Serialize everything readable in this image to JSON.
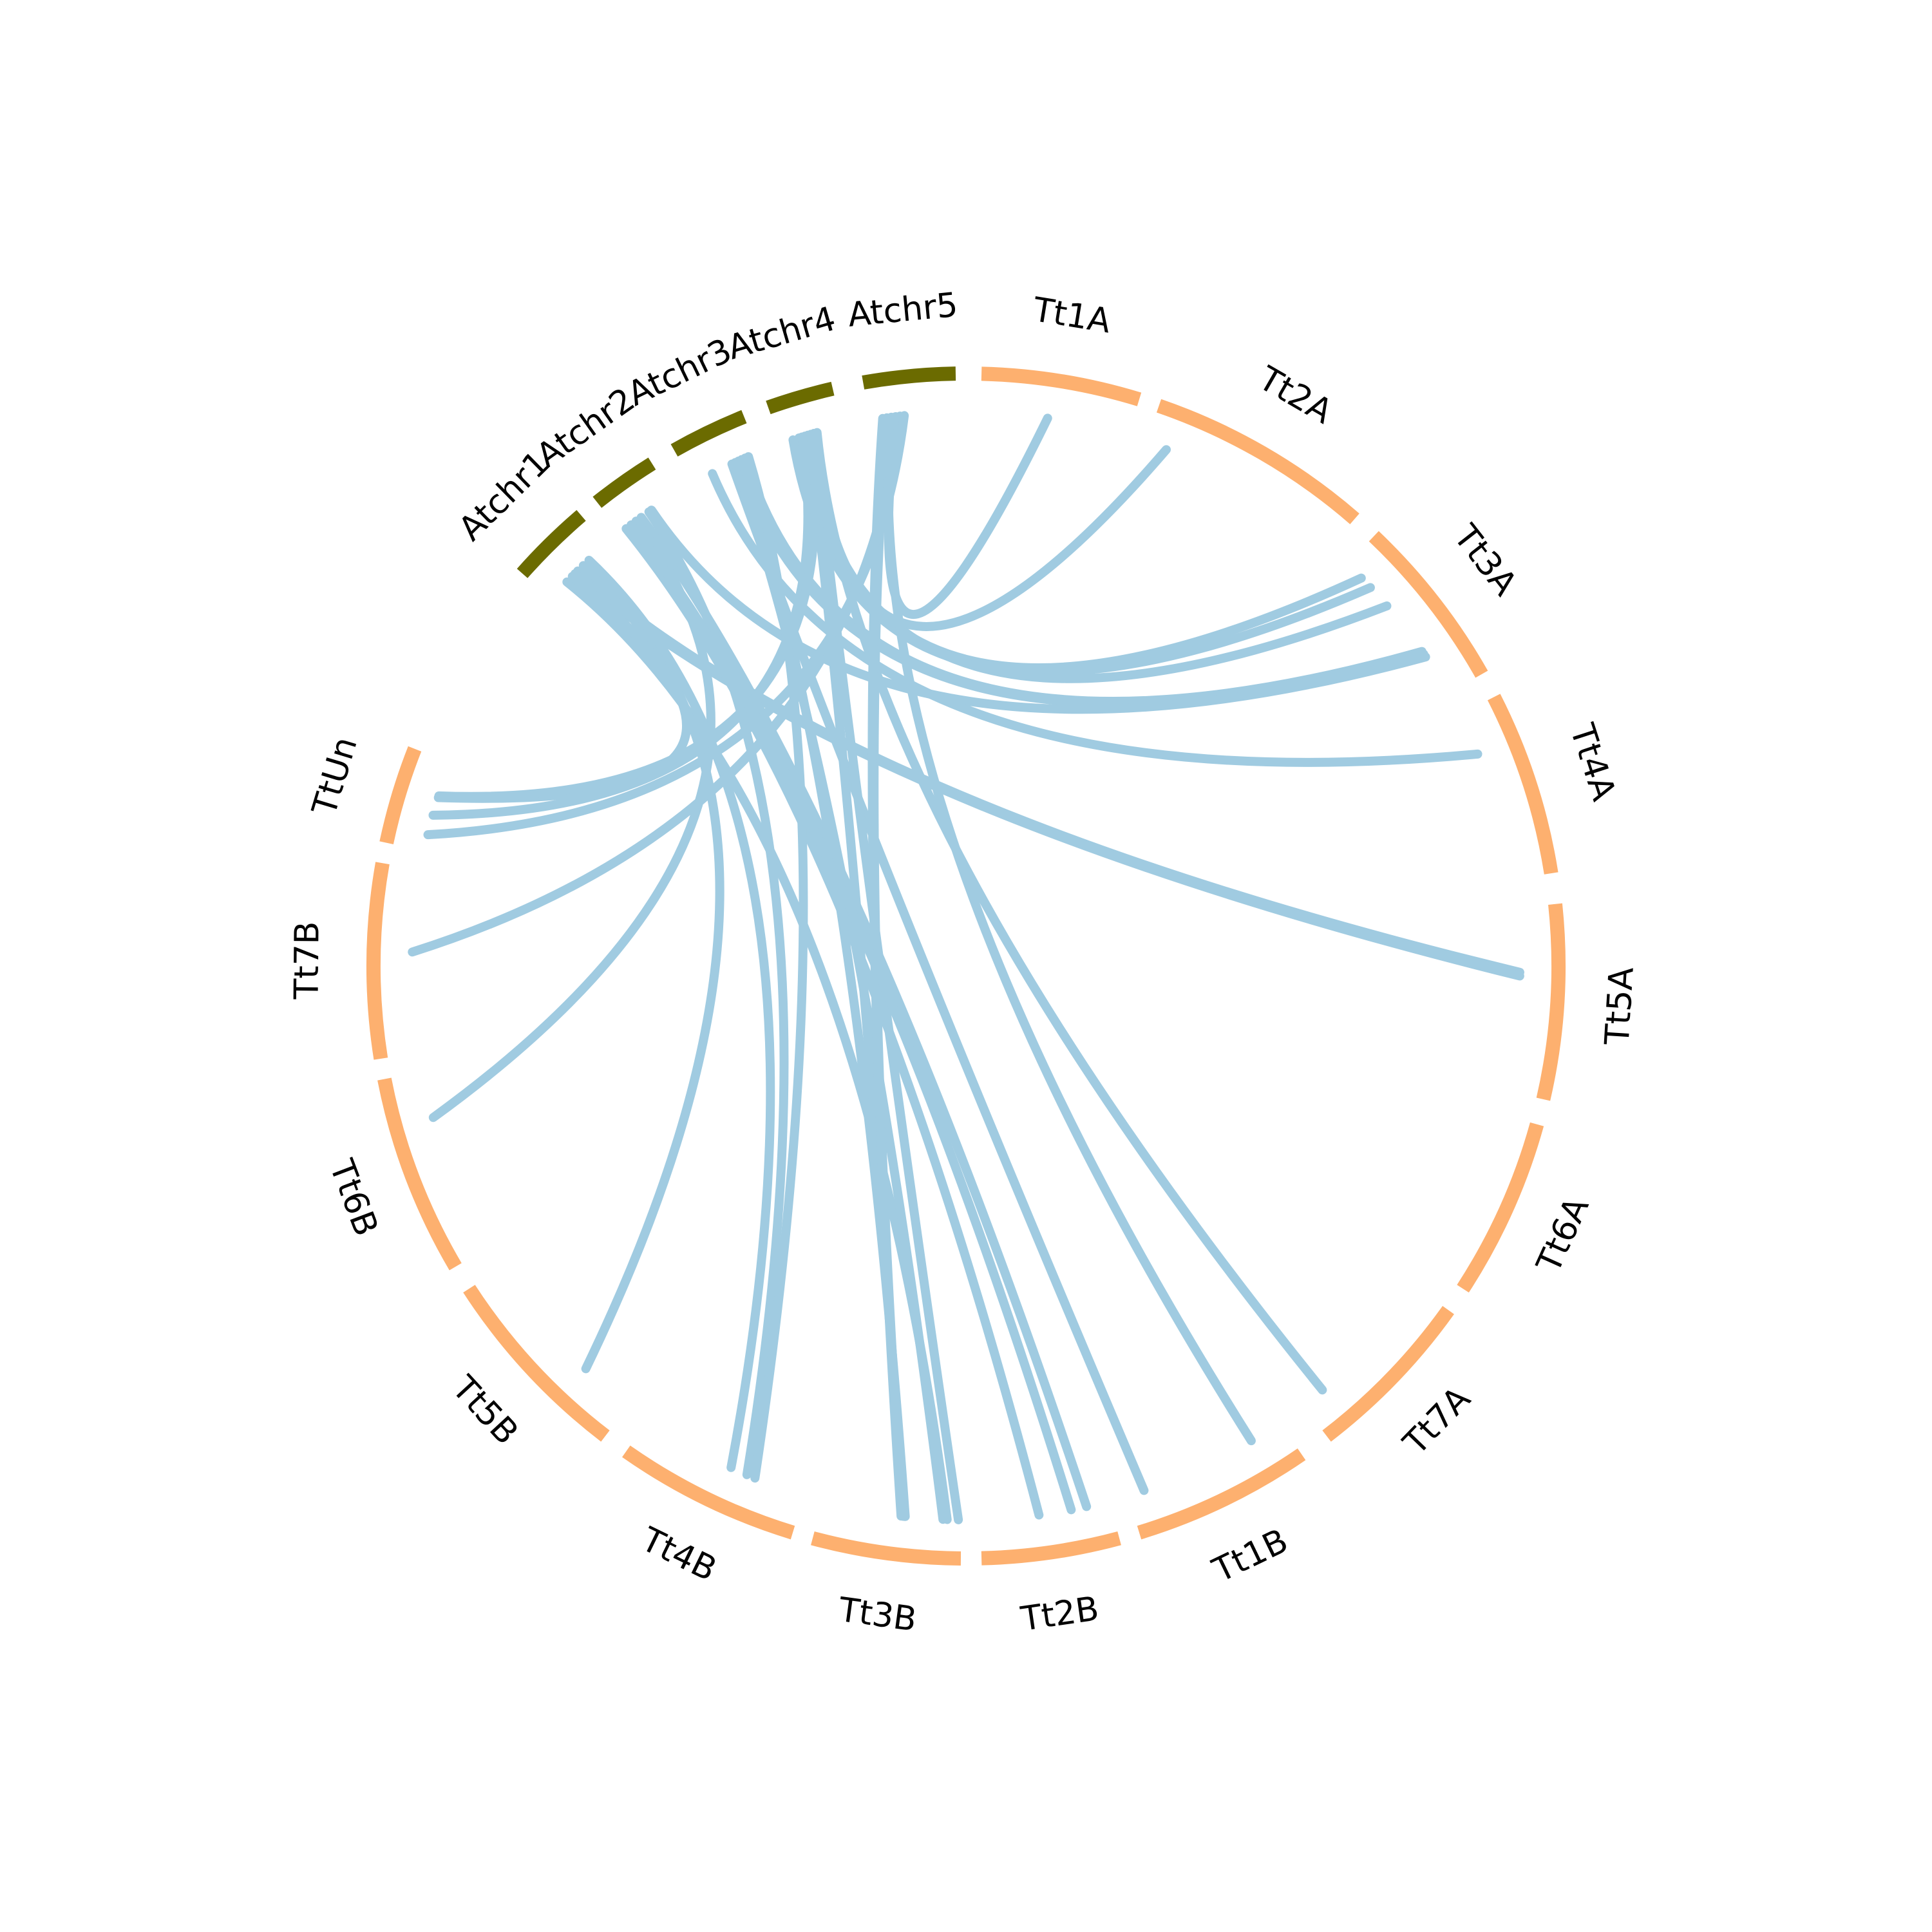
{
  "chart_data": {
    "type": "chord",
    "colors": {
      "ath": "#6b6b00",
      "tt": "#fdb06f",
      "link": "#a0cbe1"
    },
    "chromosomes": [
      {
        "name": "Atchr1",
        "group": "ath"
      },
      {
        "name": "Atchr2",
        "group": "ath"
      },
      {
        "name": "Atchr3",
        "group": "ath"
      },
      {
        "name": "Atchr4",
        "group": "ath"
      },
      {
        "name": "Atchr5",
        "group": "ath"
      },
      {
        "name": "Tt1A",
        "group": "tt"
      },
      {
        "name": "Tt2A",
        "group": "tt"
      },
      {
        "name": "Tt3A",
        "group": "tt"
      },
      {
        "name": "Tt4A",
        "group": "tt"
      },
      {
        "name": "Tt5A",
        "group": "tt"
      },
      {
        "name": "Tt6A",
        "group": "tt"
      },
      {
        "name": "Tt7A",
        "group": "tt"
      },
      {
        "name": "Tt1B",
        "group": "tt"
      },
      {
        "name": "Tt2B",
        "group": "tt"
      },
      {
        "name": "Tt3B",
        "group": "tt"
      },
      {
        "name": "Tt4B",
        "group": "tt"
      },
      {
        "name": "Tt5B",
        "group": "tt"
      },
      {
        "name": "Tt6B",
        "group": "tt"
      },
      {
        "name": "Tt7B",
        "group": "tt"
      },
      {
        "name": "TtUn",
        "group": "tt"
      }
    ],
    "links": [
      [
        "Atchr5",
        0.3,
        "Tt1A",
        0.45
      ],
      [
        "Atchr4",
        0.55,
        "Tt2A",
        0.1
      ],
      [
        "Atchr4",
        0.3,
        "Tt3A",
        0.12
      ],
      [
        "Atchr4",
        0.2,
        "Tt3A",
        0.2
      ],
      [
        "Atchr4",
        0.4,
        "Tt3A",
        0.35
      ],
      [
        "Atchr3",
        0.8,
        "Tt3A",
        0.7
      ],
      [
        "Atchr3",
        0.7,
        "Tt3A",
        0.72
      ],
      [
        "Atchr2",
        0.6,
        "Tt3A",
        0.74
      ],
      [
        "Atchr3",
        0.3,
        "Tt4A",
        0.25
      ],
      [
        "Atchr1",
        0.5,
        "Tt5A",
        0.35
      ],
      [
        "Atchr1",
        0.45,
        "Tt5A",
        0.37
      ],
      [
        "Atchr4",
        0.6,
        "Tt7A",
        0.85
      ],
      [
        "Atchr5",
        0.25,
        "Tt1B",
        0.2
      ],
      [
        "Atchr3",
        0.6,
        "Tt1B",
        0.9
      ],
      [
        "Atchr2",
        0.1,
        "Tt2B",
        0.55
      ],
      [
        "Atchr2",
        0.4,
        "Tt2B",
        0.18
      ],
      [
        "Atchr4",
        0.55,
        "Tt3B",
        0.02
      ],
      [
        "Atchr1",
        0.3,
        "Tt3B",
        0.1
      ],
      [
        "Atchr3",
        0.65,
        "Tt3B",
        0.13
      ],
      [
        "Atchr3",
        0.75,
        "Tt3B",
        0.4
      ],
      [
        "Atchr4",
        0.45,
        "Tt3B",
        0.41
      ],
      [
        "Atchr5",
        0.2,
        "Tt3B",
        0.42
      ],
      [
        "Atchr5",
        0.15,
        "Tt3B",
        0.43
      ],
      [
        "Atchr2",
        0.55,
        "Tt4B",
        0.35
      ],
      [
        "Atchr3",
        0.85,
        "Tt4B",
        0.3
      ],
      [
        "Atchr1",
        0.6,
        "Tt5B",
        0.3
      ],
      [
        "Atchr2",
        0.3,
        "Tt6B",
        0.75
      ],
      [
        "Atchr5",
        0.35,
        "Tt7B",
        0.55
      ],
      [
        "Atchr5",
        0.4,
        "TtUn",
        0.18
      ],
      [
        "Atchr4",
        0.35,
        "TtUn",
        0.4
      ],
      [
        "Atchr1",
        0.4,
        "TtUn",
        0.6
      ],
      [
        "Atchr4",
        0.5,
        "TtUn",
        0.62
      ],
      [
        "Atchr2",
        0.2,
        "Tt2B",
        0.3
      ],
      [
        "Atchr1",
        0.7,
        "Tt4B",
        0.45
      ]
    ]
  }
}
